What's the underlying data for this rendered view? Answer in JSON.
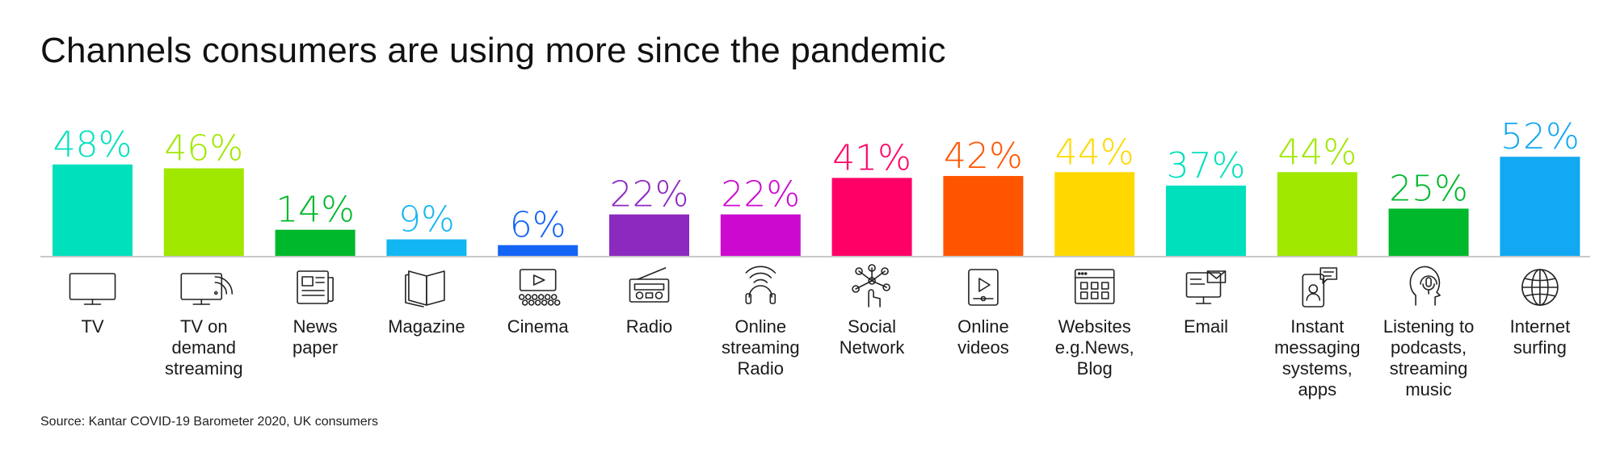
{
  "title": "Channels consumers are using more since the pandemic",
  "source": "Source: Kantar COVID-19 Barometer 2020, UK consumers",
  "chart_data": {
    "type": "bar",
    "title": "Channels consumers are using more since the pandemic",
    "xlabel": "",
    "ylabel": "",
    "ylim": [
      0,
      60
    ],
    "grid": false,
    "legend": "none",
    "categories": [
      "TV",
      "TV on demand streaming",
      "News paper",
      "Magazine",
      "Cinema",
      "Radio",
      "Online streaming Radio",
      "Social Network",
      "Online videos",
      "Websites e.g.News, Blog",
      "Email",
      "Instant messaging systems, apps",
      "Listening to podcasts, streaming music",
      "Internet surfing"
    ],
    "category_lines": [
      [
        "TV"
      ],
      [
        "TV on",
        "demand",
        "streaming"
      ],
      [
        "News",
        "paper"
      ],
      [
        "Magazine"
      ],
      [
        "Cinema"
      ],
      [
        "Radio"
      ],
      [
        "Online",
        "streaming",
        "Radio"
      ],
      [
        "Social",
        "Network"
      ],
      [
        "Online",
        "videos"
      ],
      [
        "Websites",
        "e.g.News,",
        "Blog"
      ],
      [
        "Email"
      ],
      [
        "Instant",
        "messaging",
        "systems,",
        "apps"
      ],
      [
        "Listening to",
        "podcasts,",
        "streaming",
        "music"
      ],
      [
        "Internet",
        "surfing"
      ]
    ],
    "values": [
      48,
      46,
      14,
      9,
      6,
      22,
      22,
      41,
      42,
      44,
      37,
      44,
      25,
      52
    ],
    "value_labels": [
      "48%",
      "46%",
      "14%",
      "9%",
      "6%",
      "22%",
      "22%",
      "41%",
      "42%",
      "44%",
      "37%",
      "44%",
      "25%",
      "52%"
    ],
    "colors": [
      "#00E0BC",
      "#A0E800",
      "#00B82B",
      "#12B6F2",
      "#1464F6",
      "#8C2AC0",
      "#CC0ACF",
      "#FF0066",
      "#FF5500",
      "#FFD800",
      "#00E0BC",
      "#A0E800",
      "#00B82B",
      "#12A8F2"
    ],
    "icons": [
      "tv-icon",
      "tv-streaming-icon",
      "newspaper-icon",
      "magazine-icon",
      "cinema-icon",
      "radio-icon",
      "online-radio-icon",
      "social-network-icon",
      "online-video-icon",
      "website-icon",
      "email-icon",
      "instant-messaging-icon",
      "podcast-icon",
      "internet-globe-icon"
    ]
  }
}
